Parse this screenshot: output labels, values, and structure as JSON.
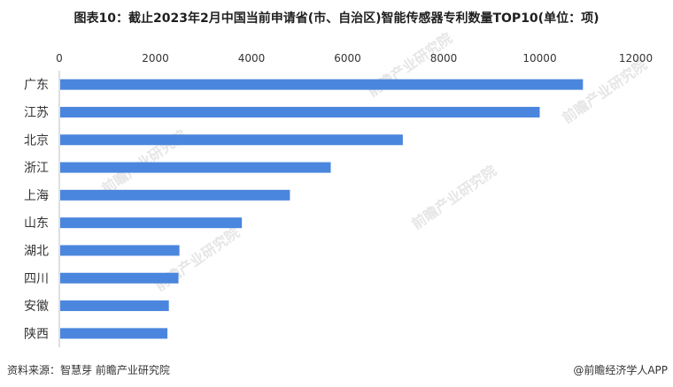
{
  "header": {
    "title": "图表10：截止2023年2月中国当前申请省(市、自治区)智能传感器专利数量TOP10(单位：项)"
  },
  "footer": {
    "source": "资料来源：智慧芽 前瞻产业研究院",
    "brand": "@前瞻经济学人APP"
  },
  "watermark": {
    "text": "前瞻产业研究院"
  },
  "colors": {
    "bar": "#4a86dd",
    "axis": "#bfbfbf",
    "text": "#333333"
  },
  "chart_data": {
    "type": "bar",
    "orientation": "horizontal",
    "title": "图表10：截止2023年2月中国当前申请省(市、自治区)智能传感器专利数量TOP10(单位：项)",
    "categories": [
      "广东",
      "江苏",
      "北京",
      "浙江",
      "上海",
      "山东",
      "湖北",
      "四川",
      "安徽",
      "陕西"
    ],
    "values": [
      10900,
      10000,
      7150,
      5650,
      4800,
      3800,
      2500,
      2480,
      2280,
      2250
    ],
    "xlim": [
      0,
      12000
    ],
    "xticks": [
      0,
      2000,
      4000,
      6000,
      8000,
      10000,
      12000
    ],
    "xaxis_position": "top",
    "grid": false,
    "legend": "none"
  }
}
